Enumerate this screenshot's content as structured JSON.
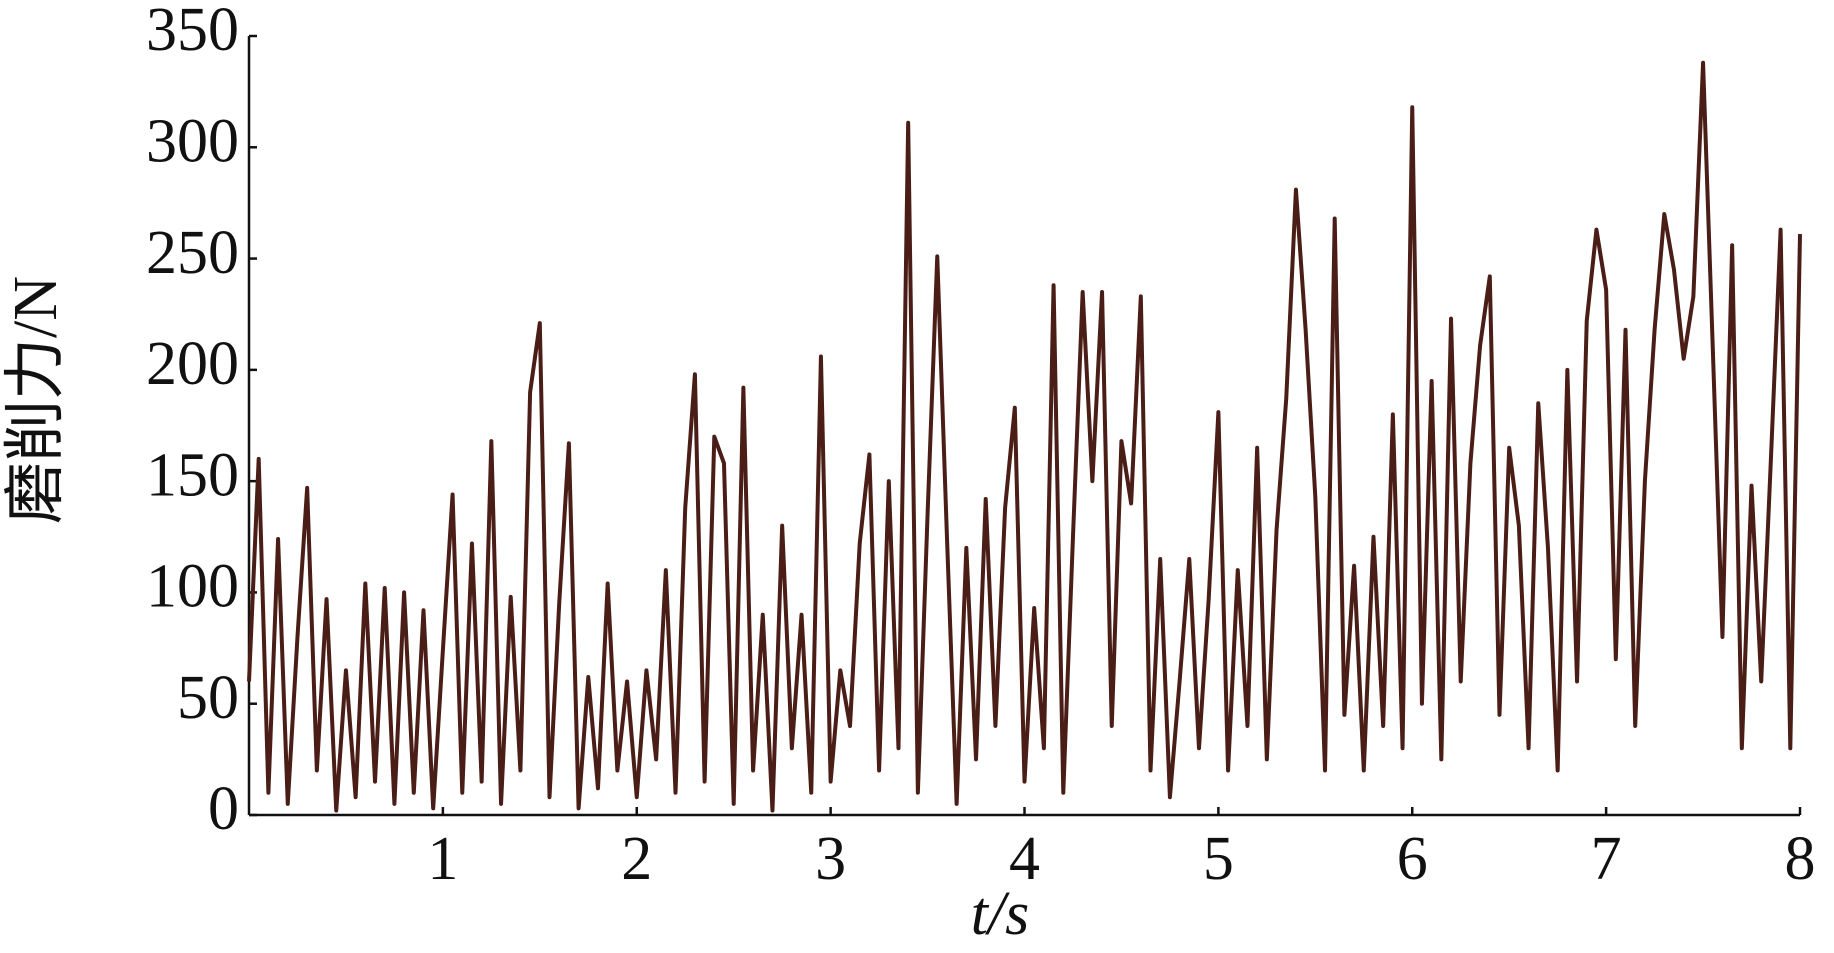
{
  "chart_data": {
    "type": "line",
    "x_label": "t/s",
    "y_label": "磨削力/N",
    "xlim": [
      0,
      8
    ],
    "xticks": [
      1,
      2,
      3,
      4,
      5,
      6,
      7,
      8
    ],
    "ylim": [
      0,
      350
    ],
    "yticks": [
      0,
      50,
      100,
      150,
      200,
      250,
      300,
      350
    ],
    "grid": false,
    "x": [
      0,
      0.05,
      0.1,
      0.15,
      0.2,
      0.25,
      0.3,
      0.35,
      0.4,
      0.45,
      0.5,
      0.55,
      0.6,
      0.65,
      0.7,
      0.75,
      0.8,
      0.85,
      0.9,
      0.95,
      1,
      1.05,
      1.1,
      1.15,
      1.2,
      1.25,
      1.3,
      1.35,
      1.4,
      1.45,
      1.5,
      1.55,
      1.6,
      1.65,
      1.7,
      1.75,
      1.8,
      1.85,
      1.9,
      1.95,
      2,
      2.05,
      2.1,
      2.15,
      2.2,
      2.25,
      2.3,
      2.35,
      2.4,
      2.45,
      2.5,
      2.55,
      2.6,
      2.65,
      2.7,
      2.75,
      2.8,
      2.85,
      2.9,
      2.95,
      3,
      3.05,
      3.1,
      3.15,
      3.2,
      3.25,
      3.3,
      3.35,
      3.4,
      3.45,
      3.5,
      3.55,
      3.6,
      3.65,
      3.7,
      3.75,
      3.8,
      3.85,
      3.9,
      3.95,
      4,
      4.05,
      4.1,
      4.15,
      4.2,
      4.25,
      4.3,
      4.35,
      4.4,
      4.45,
      4.5,
      4.55,
      4.6,
      4.65,
      4.7,
      4.75,
      4.8,
      4.85,
      4.9,
      4.95,
      5,
      5.05,
      5.1,
      5.15,
      5.2,
      5.25,
      5.3,
      5.35,
      5.4,
      5.45,
      5.5,
      5.55,
      5.6,
      5.65,
      5.7,
      5.75,
      5.8,
      5.85,
      5.9,
      5.95,
      6,
      6.05,
      6.1,
      6.15,
      6.2,
      6.25,
      6.3,
      6.35,
      6.4,
      6.45,
      6.5,
      6.55,
      6.6,
      6.65,
      6.7,
      6.75,
      6.8,
      6.85,
      6.9,
      6.95,
      7,
      7.05,
      7.1,
      7.15,
      7.2,
      7.25,
      7.3,
      7.35,
      7.4,
      7.45,
      7.5,
      7.55,
      7.6,
      7.65,
      7.7,
      7.75,
      7.8,
      7.85,
      7.9,
      7.95,
      8
    ],
    "series": [
      {
        "color": "#4a1e17",
        "values": [
          60,
          160,
          10,
          124,
          5,
          80,
          147,
          20,
          97,
          2,
          65,
          8,
          104,
          15,
          102,
          5,
          100,
          10,
          92,
          3,
          74,
          144,
          10,
          122,
          15,
          168,
          5,
          98,
          20,
          190,
          221,
          8,
          95,
          167,
          3,
          62,
          12,
          104,
          20,
          60,
          8,
          65,
          25,
          110,
          10,
          138,
          198,
          15,
          170,
          158,
          5,
          192,
          20,
          90,
          2,
          130,
          30,
          90,
          10,
          206,
          15,
          65,
          40,
          122,
          162,
          20,
          150,
          30,
          311,
          10,
          135,
          251,
          125,
          5,
          120,
          25,
          142,
          40,
          138,
          183,
          15,
          93,
          30,
          238,
          10,
          125,
          235,
          150,
          235,
          40,
          168,
          140,
          233,
          20,
          115,
          8,
          60,
          115,
          30,
          97,
          181,
          20,
          110,
          40,
          165,
          25,
          128,
          187,
          281,
          218,
          143,
          20,
          268,
          45,
          112,
          20,
          125,
          40,
          180,
          30,
          318,
          50,
          195,
          25,
          223,
          60,
          158,
          211,
          242,
          45,
          165,
          130,
          30,
          185,
          120,
          20,
          200,
          60,
          222,
          263,
          236,
          70,
          218,
          40,
          150,
          218,
          270,
          245,
          205,
          233,
          338,
          210,
          80,
          256,
          30,
          148,
          60,
          160,
          263,
          30,
          261
        ]
      }
    ]
  }
}
